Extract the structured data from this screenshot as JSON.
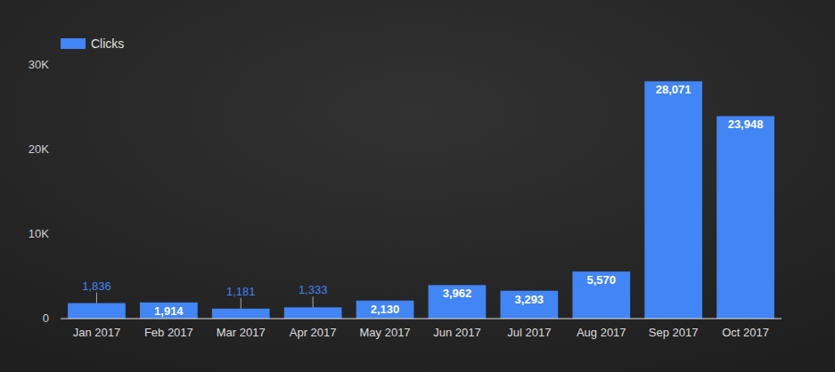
{
  "chart_data": {
    "type": "bar",
    "categories": [
      "Jan 2017",
      "Feb 2017",
      "Mar 2017",
      "Apr 2017",
      "May 2017",
      "Jun 2017",
      "Jul 2017",
      "Aug 2017",
      "Sep 2017",
      "Oct 2017"
    ],
    "series": [
      {
        "name": "Clicks",
        "color": "#4285f4",
        "values": [
          1836,
          1914,
          1181,
          1333,
          2130,
          3962,
          3293,
          5570,
          28071,
          23948
        ],
        "value_labels": [
          "1,836",
          "1,914",
          "1,181",
          "1,333",
          "2,130",
          "3,962",
          "3,293",
          "5,570",
          "28,071",
          "23,948"
        ]
      }
    ],
    "ylim": [
      0,
      30000
    ],
    "yticks": [
      0,
      {
        "value": 10000,
        "label": "10K"
      },
      {
        "value": 20000,
        "label": "20K"
      },
      {
        "value": 30000,
        "label": "30K"
      }
    ],
    "grid": false,
    "legend": "top-left",
    "data_labels": true
  }
}
